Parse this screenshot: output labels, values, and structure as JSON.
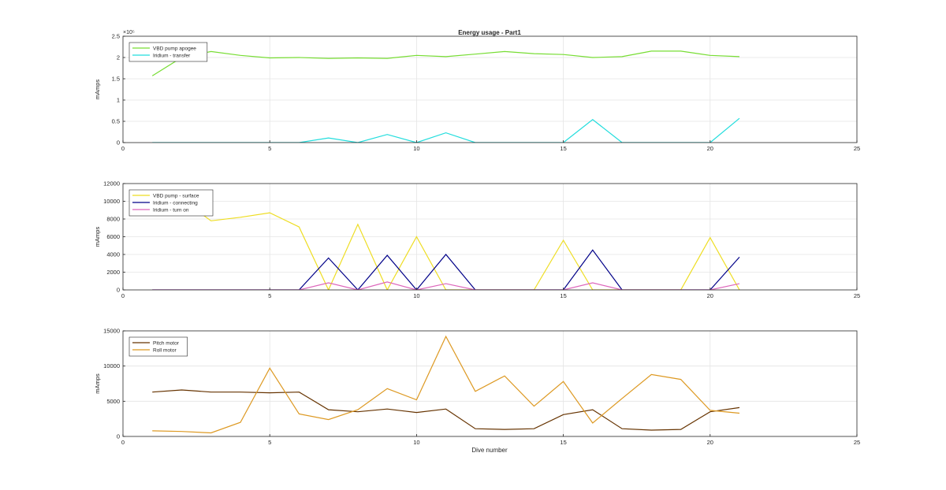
{
  "figure": {
    "title": "Energy usage - Part1",
    "xlabel": "Dive number"
  },
  "chart_data": [
    {
      "type": "line",
      "title": "Energy usage - Part1",
      "xlabel": "",
      "ylabel": "mAmps",
      "xlim": [
        0,
        25
      ],
      "ylim": [
        0,
        250000
      ],
      "xticks": [
        0,
        5,
        10,
        15,
        20,
        25
      ],
      "yticks": [
        0,
        50000,
        100000,
        150000,
        200000,
        250000
      ],
      "ytick_labels": [
        "0",
        "0.5",
        "1",
        "1.5",
        "2",
        "2.5"
      ],
      "exponent_label": "×10⁵",
      "grid": true,
      "legend": "top-left",
      "x": [
        1,
        2,
        3,
        4,
        5,
        6,
        7,
        8,
        9,
        10,
        11,
        12,
        13,
        14,
        15,
        16,
        17,
        18,
        19,
        20,
        21
      ],
      "series": [
        {
          "name": "VBD pump apogee",
          "color": "#77dd33",
          "values": [
            157000,
            200000,
            214000,
            205000,
            199000,
            200000,
            198000,
            199000,
            198000,
            205000,
            202000,
            208000,
            214000,
            209000,
            207000,
            200000,
            202000,
            215000,
            215000,
            205000,
            202000
          ]
        },
        {
          "name": "Iridium - transfer",
          "color": "#22dddd",
          "values": [
            0,
            0,
            0,
            0,
            0,
            0,
            11000,
            0,
            19000,
            0,
            23000,
            0,
            0,
            0,
            0,
            54000,
            0,
            0,
            0,
            0,
            57000
          ]
        }
      ]
    },
    {
      "type": "line",
      "xlabel": "",
      "ylabel": "mAmps",
      "xlim": [
        0,
        25
      ],
      "ylim": [
        0,
        12000
      ],
      "xticks": [
        0,
        5,
        10,
        15,
        20,
        25
      ],
      "yticks": [
        0,
        2000,
        4000,
        6000,
        8000,
        10000,
        12000
      ],
      "ytick_labels": [
        "0",
        "2000",
        "4000",
        "6000",
        "8000",
        "10000",
        "12000"
      ],
      "grid": true,
      "legend": "top-left",
      "x": [
        1,
        2,
        3,
        4,
        5,
        6,
        7,
        8,
        9,
        10,
        11,
        12,
        13,
        14,
        15,
        16,
        17,
        18,
        19,
        20,
        21
      ],
      "series": [
        {
          "name": "VBD pump - surface",
          "color": "#eedd22",
          "values": [
            11200,
            10200,
            7800,
            8200,
            8700,
            7100,
            0,
            7400,
            0,
            6000,
            0,
            0,
            0,
            0,
            5600,
            0,
            0,
            0,
            0,
            5900,
            0
          ]
        },
        {
          "name": "Iridium - connecting",
          "color": "#000088",
          "values": [
            0,
            0,
            0,
            0,
            0,
            0,
            3600,
            0,
            3900,
            0,
            4000,
            0,
            0,
            0,
            0,
            4500,
            0,
            0,
            0,
            0,
            3700
          ]
        },
        {
          "name": "Iridium - turn on",
          "color": "#dd66bb",
          "values": [
            0,
            0,
            0,
            0,
            0,
            0,
            800,
            0,
            900,
            0,
            700,
            0,
            0,
            0,
            0,
            800,
            0,
            0,
            0,
            0,
            700
          ]
        }
      ]
    },
    {
      "type": "line",
      "xlabel": "Dive number",
      "ylabel": "mAmps",
      "xlim": [
        0,
        25
      ],
      "ylim": [
        0,
        15000
      ],
      "xticks": [
        0,
        5,
        10,
        15,
        20,
        25
      ],
      "yticks": [
        0,
        5000,
        10000,
        15000
      ],
      "ytick_labels": [
        "0",
        "5000",
        "10000",
        "15000"
      ],
      "grid": true,
      "legend": "top-left",
      "x": [
        1,
        2,
        3,
        4,
        5,
        6,
        7,
        8,
        9,
        10,
        11,
        12,
        13,
        14,
        15,
        16,
        17,
        18,
        19,
        20,
        21
      ],
      "series": [
        {
          "name": "Pitch motor",
          "color": "#663300",
          "values": [
            6300,
            6600,
            6300,
            6300,
            6200,
            6300,
            3800,
            3500,
            3900,
            3400,
            3900,
            1100,
            1000,
            1100,
            3100,
            3800,
            1100,
            900,
            1000,
            3500,
            4100
          ]
        },
        {
          "name": "Roll motor",
          "color": "#dd9922",
          "values": [
            800,
            700,
            500,
            2000,
            9700,
            3200,
            2400,
            3800,
            6800,
            5200,
            14200,
            6400,
            8600,
            4300,
            7800,
            1900,
            5400,
            8800,
            8100,
            3700,
            3300
          ]
        }
      ]
    }
  ]
}
